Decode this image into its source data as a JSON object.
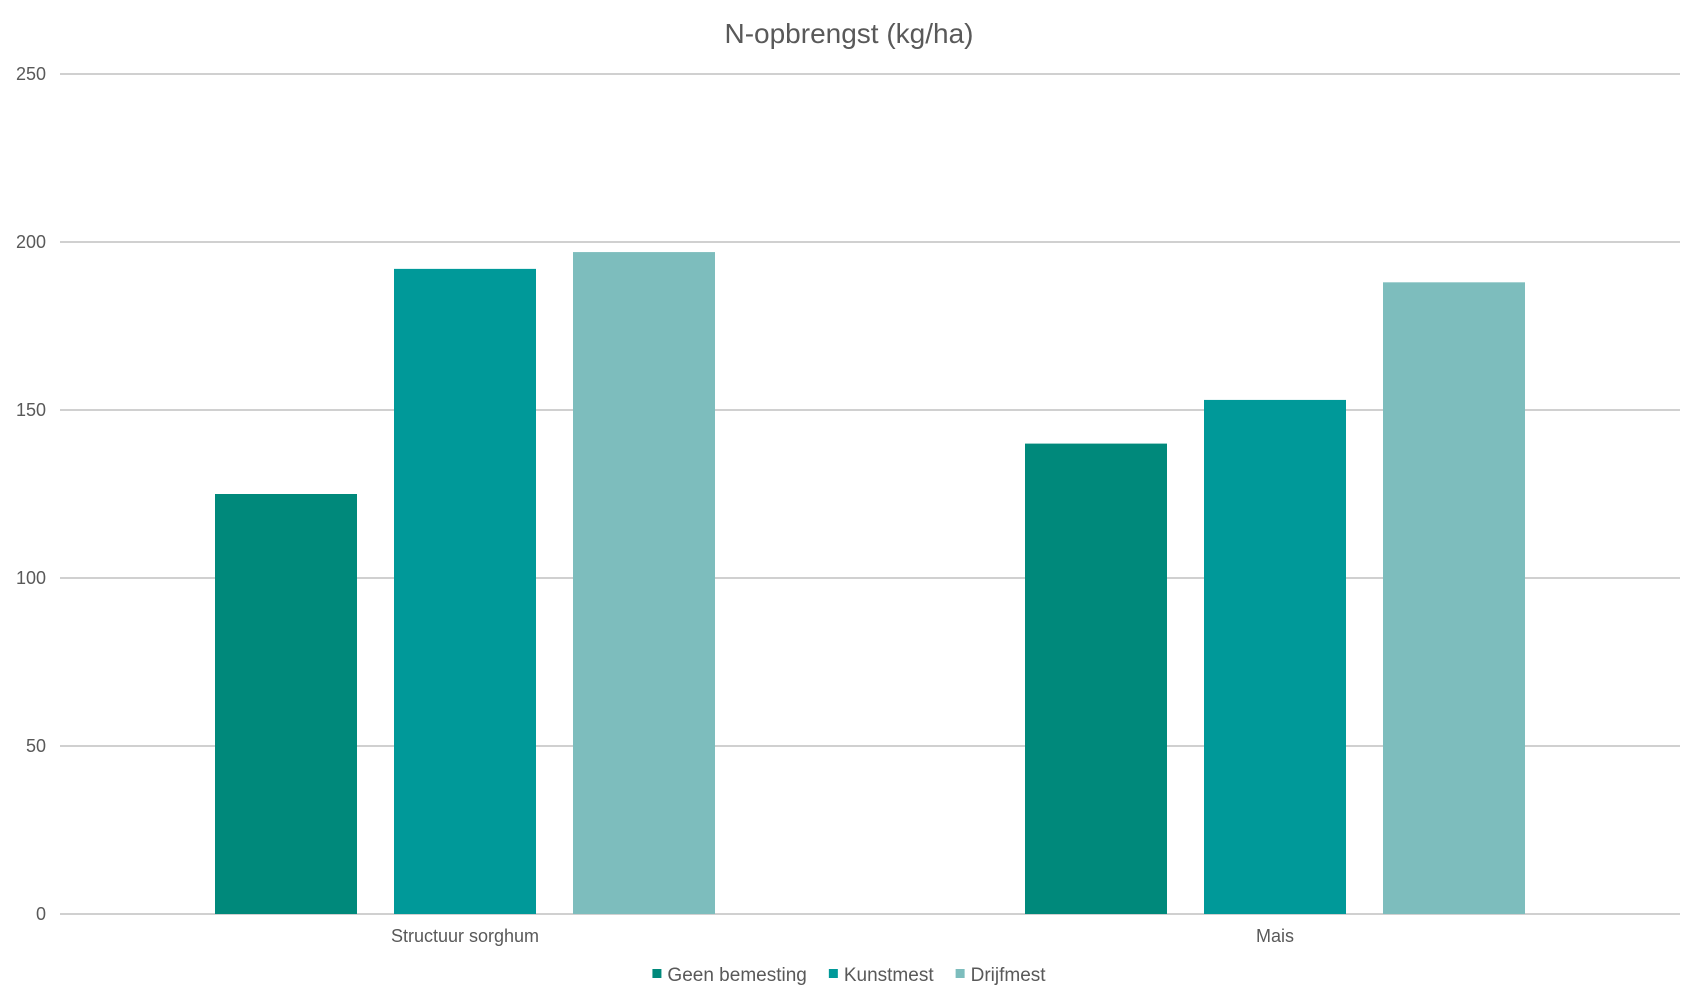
{
  "chart_data": {
    "type": "bar",
    "title": "N-opbrengst (kg/ha)",
    "categories": [
      "Structuur sorghum",
      "Mais"
    ],
    "series": [
      {
        "name": "Geen bemesting",
        "color": "#00897b",
        "values": [
          125,
          140
        ]
      },
      {
        "name": "Kunstmest",
        "color": "#009999",
        "values": [
          192,
          153
        ]
      },
      {
        "name": "Drijfmest",
        "color": "#7dbdbd",
        "values": [
          197,
          188
        ]
      }
    ],
    "ylim": [
      0,
      250
    ],
    "yticks": [
      "0",
      "50",
      "100",
      "150",
      "200",
      "250"
    ],
    "grid": true,
    "legend_position": "bottom"
  }
}
